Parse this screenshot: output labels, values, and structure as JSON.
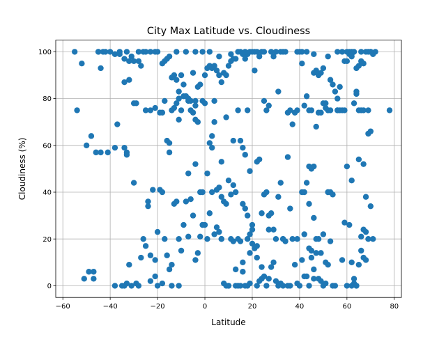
{
  "chart_data": {
    "type": "scatter",
    "title": "City Max Latitude vs. Cloudiness",
    "xlabel": "Latitude",
    "ylabel": "Cloudiness (%)",
    "xlim": [
      -63,
      83
    ],
    "ylim": [
      -5,
      105
    ],
    "xticks": [
      -60,
      -40,
      -20,
      0,
      20,
      40,
      60,
      80
    ],
    "yticks": [
      0,
      20,
      40,
      60,
      80,
      100
    ],
    "xtick_labels": [
      "−60",
      "−40",
      "−20",
      "0",
      "20",
      "40",
      "60",
      "80"
    ],
    "ytick_labels": [
      "0",
      "20",
      "40",
      "60",
      "80",
      "100"
    ],
    "grid": true,
    "marker_color": "#1f77b4",
    "points": [
      [
        -55,
        100
      ],
      [
        -52,
        95
      ],
      [
        -50,
        60
      ],
      [
        -48,
        64
      ],
      [
        -46,
        57
      ],
      [
        -44,
        57
      ],
      [
        -45,
        100
      ],
      [
        -43,
        100
      ],
      [
        -42,
        100
      ],
      [
        -44,
        93
      ],
      [
        -40,
        100
      ],
      [
        -38,
        99
      ],
      [
        -36,
        99
      ],
      [
        -34,
        97
      ],
      [
        -33,
        100
      ],
      [
        -32,
        96
      ],
      [
        -30,
        96
      ],
      [
        -28,
        96
      ],
      [
        -26,
        100
      ],
      [
        -25,
        100
      ],
      [
        -23,
        100
      ],
      [
        -21,
        100
      ],
      [
        -54,
        75
      ],
      [
        -41,
        57
      ],
      [
        -38,
        59
      ],
      [
        -37,
        69
      ],
      [
        -34,
        59
      ],
      [
        -33,
        56
      ],
      [
        -33,
        57
      ],
      [
        -31,
        98
      ],
      [
        -34,
        87
      ],
      [
        -32,
        88
      ],
      [
        -30,
        78
      ],
      [
        -28,
        100
      ],
      [
        -27,
        94
      ],
      [
        -25,
        75
      ],
      [
        -23,
        75
      ],
      [
        -21,
        76
      ],
      [
        -19,
        74
      ],
      [
        -18,
        95
      ],
      [
        -17,
        96
      ],
      [
        -16,
        97
      ],
      [
        -15,
        98
      ],
      [
        -14,
        89
      ],
      [
        -13,
        90
      ],
      [
        -12,
        88
      ],
      [
        -11,
        83
      ],
      [
        -10,
        90
      ],
      [
        -9,
        81
      ],
      [
        -8,
        81
      ],
      [
        -7,
        80
      ],
      [
        -6,
        79
      ],
      [
        -5,
        91
      ],
      [
        -4,
        79
      ],
      [
        -3,
        85
      ],
      [
        -2,
        86
      ],
      [
        -1,
        79
      ],
      [
        0,
        90
      ],
      [
        1,
        93
      ],
      [
        2,
        94
      ],
      [
        3,
        93
      ],
      [
        4,
        94
      ],
      [
        5,
        92
      ],
      [
        6,
        90
      ],
      [
        7,
        87
      ],
      [
        8,
        91
      ],
      [
        9,
        90
      ],
      [
        10,
        94
      ],
      [
        11,
        96
      ],
      [
        12,
        97
      ],
      [
        13,
        97
      ],
      [
        14,
        100
      ],
      [
        15,
        100
      ],
      [
        16,
        99
      ],
      [
        17,
        97
      ],
      [
        18,
        99
      ],
      [
        19,
        100
      ],
      [
        20,
        100
      ],
      [
        -17,
        79
      ],
      [
        -16,
        62
      ],
      [
        -15,
        61
      ],
      [
        -15,
        57
      ],
      [
        -14,
        75
      ],
      [
        -13,
        76
      ],
      [
        -12,
        78
      ],
      [
        -11,
        80
      ],
      [
        -10,
        75
      ],
      [
        -9,
        86
      ],
      [
        -8,
        81
      ],
      [
        -7,
        79
      ],
      [
        -6,
        75
      ],
      [
        -5,
        74
      ],
      [
        -4,
        77
      ],
      [
        -3,
        70
      ],
      [
        -2,
        40
      ],
      [
        -1,
        40
      ],
      [
        0,
        26
      ],
      [
        1,
        48
      ],
      [
        2,
        61
      ],
      [
        3,
        59
      ],
      [
        3,
        40
      ],
      [
        5,
        41
      ],
      [
        6,
        42
      ],
      [
        7,
        38
      ],
      [
        8,
        36
      ],
      [
        9,
        35
      ],
      [
        10,
        45
      ],
      [
        11,
        39
      ],
      [
        12,
        43
      ],
      [
        13,
        40
      ],
      [
        14,
        20
      ],
      [
        15,
        19
      ],
      [
        16,
        35
      ],
      [
        17,
        33
      ],
      [
        18,
        20
      ],
      [
        19,
        22
      ],
      [
        20,
        24
      ],
      [
        -49,
        6
      ],
      [
        -47,
        6
      ],
      [
        -47,
        3
      ],
      [
        -51,
        3
      ],
      [
        -38,
        0
      ],
      [
        -35,
        0
      ],
      [
        -34,
        0
      ],
      [
        -33,
        1
      ],
      [
        -31,
        0
      ],
      [
        -29,
        1
      ],
      [
        -27,
        12
      ],
      [
        -26,
        20
      ],
      [
        -25,
        17
      ],
      [
        -24,
        36
      ],
      [
        -24,
        34
      ],
      [
        -23,
        13
      ],
      [
        -22,
        41
      ],
      [
        -21,
        4
      ],
      [
        -21,
        11
      ],
      [
        -20,
        23
      ],
      [
        -19,
        41
      ],
      [
        -18,
        40
      ],
      [
        -17,
        20
      ],
      [
        -16,
        13
      ],
      [
        -15,
        7
      ],
      [
        -14,
        9
      ],
      [
        -13,
        35
      ],
      [
        -12,
        36
      ],
      [
        -11,
        20
      ],
      [
        -10,
        15
      ],
      [
        -9,
        26
      ],
      [
        -8,
        36
      ],
      [
        -7,
        21
      ],
      [
        -6,
        37
      ],
      [
        -5,
        30
      ],
      [
        -4,
        11
      ],
      [
        -3,
        14
      ],
      [
        -2,
        21
      ],
      [
        -1,
        26
      ],
      [
        1,
        20
      ],
      [
        2,
        31
      ],
      [
        3,
        64
      ],
      [
        4,
        79
      ],
      [
        5,
        25
      ],
      [
        6,
        23
      ],
      [
        7,
        20
      ],
      [
        8,
        1
      ],
      [
        9,
        0
      ],
      [
        10,
        0
      ],
      [
        11,
        20
      ],
      [
        12,
        19
      ],
      [
        13,
        0
      ],
      [
        14,
        0
      ],
      [
        15,
        0
      ],
      [
        16,
        6
      ],
      [
        17,
        0
      ],
      [
        18,
        0
      ],
      [
        19,
        14
      ],
      [
        20,
        18
      ],
      [
        21,
        16
      ],
      [
        22,
        12
      ],
      [
        22,
        17
      ],
      [
        23,
        2
      ],
      [
        24,
        3
      ],
      [
        25,
        4
      ],
      [
        26,
        0
      ],
      [
        27,
        3
      ],
      [
        28,
        8
      ],
      [
        29,
        10
      ],
      [
        30,
        2
      ],
      [
        31,
        0
      ],
      [
        32,
        1
      ],
      [
        33,
        0
      ],
      [
        21,
        92
      ],
      [
        22,
        100
      ],
      [
        23,
        98
      ],
      [
        24,
        100
      ],
      [
        25,
        79
      ],
      [
        26,
        75
      ],
      [
        27,
        77
      ],
      [
        28,
        100
      ],
      [
        29,
        98
      ],
      [
        30,
        100
      ],
      [
        31,
        83
      ],
      [
        32,
        100
      ],
      [
        33,
        100
      ],
      [
        34,
        100
      ],
      [
        35,
        74
      ],
      [
        36,
        75
      ],
      [
        37,
        69
      ],
      [
        38,
        74
      ],
      [
        39,
        75
      ],
      [
        22,
        53
      ],
      [
        23,
        54
      ],
      [
        24,
        31
      ],
      [
        25,
        39
      ],
      [
        26,
        40
      ],
      [
        27,
        30
      ],
      [
        28,
        31
      ],
      [
        29,
        24
      ],
      [
        30,
        20
      ],
      [
        31,
        38
      ],
      [
        32,
        44
      ],
      [
        33,
        20
      ],
      [
        34,
        19
      ],
      [
        35,
        55
      ],
      [
        36,
        33
      ],
      [
        37,
        20
      ],
      [
        38,
        9
      ],
      [
        39,
        20
      ],
      [
        40,
        100
      ],
      [
        41,
        100
      ],
      [
        41,
        95
      ],
      [
        42,
        77
      ],
      [
        43,
        81
      ],
      [
        44,
        75
      ],
      [
        45,
        75
      ],
      [
        46,
        91
      ],
      [
        47,
        92
      ],
      [
        48,
        90
      ],
      [
        49,
        91
      ],
      [
        50,
        93
      ],
      [
        51,
        78
      ],
      [
        52,
        75
      ],
      [
        53,
        88
      ],
      [
        54,
        86
      ],
      [
        55,
        83
      ],
      [
        56,
        80
      ],
      [
        57,
        85
      ],
      [
        58,
        75
      ],
      [
        59,
        75
      ],
      [
        60,
        100
      ],
      [
        61,
        100
      ],
      [
        62,
        100
      ],
      [
        63,
        100
      ],
      [
        64,
        93
      ],
      [
        65,
        94
      ],
      [
        66,
        96
      ],
      [
        67,
        95
      ],
      [
        68,
        100
      ],
      [
        69,
        100
      ],
      [
        70,
        100
      ],
      [
        71,
        99
      ],
      [
        72,
        100
      ],
      [
        78,
        75
      ],
      [
        41,
        40
      ],
      [
        42,
        40
      ],
      [
        43,
        44
      ],
      [
        44,
        51
      ],
      [
        45,
        50
      ],
      [
        46,
        51
      ],
      [
        47,
        68
      ],
      [
        48,
        20
      ],
      [
        49,
        14
      ],
      [
        50,
        22
      ],
      [
        51,
        10
      ],
      [
        52,
        40
      ],
      [
        53,
        40
      ],
      [
        54,
        39
      ],
      [
        55,
        0
      ],
      [
        56,
        75
      ],
      [
        57,
        75
      ],
      [
        58,
        11
      ],
      [
        59,
        27
      ],
      [
        60,
        51
      ],
      [
        61,
        26
      ],
      [
        62,
        10
      ],
      [
        63,
        3
      ],
      [
        64,
        0
      ],
      [
        65,
        54
      ],
      [
        66,
        21
      ],
      [
        67,
        24
      ],
      [
        68,
        23
      ],
      [
        69,
        20
      ],
      [
        70,
        34
      ],
      [
        71,
        20
      ],
      [
        41,
        11
      ],
      [
        42,
        22
      ],
      [
        43,
        4
      ],
      [
        44,
        0
      ],
      [
        45,
        15
      ],
      [
        46,
        7
      ],
      [
        47,
        14
      ],
      [
        48,
        3
      ],
      [
        49,
        2
      ],
      [
        50,
        0
      ],
      [
        51,
        1
      ],
      [
        52,
        9
      ],
      [
        53,
        19
      ],
      [
        54,
        0
      ],
      [
        60,
        0
      ],
      [
        62,
        0
      ],
      [
        63,
        1
      ],
      [
        64,
        0
      ],
      [
        65,
        9
      ],
      [
        66,
        15
      ],
      [
        67,
        12
      ],
      [
        68,
        11
      ],
      [
        69,
        65
      ],
      [
        70,
        66
      ],
      [
        15,
        62
      ],
      [
        16,
        59
      ],
      [
        17,
        56
      ],
      [
        18,
        30
      ],
      [
        19,
        49
      ],
      [
        20,
        26
      ],
      [
        44,
        35
      ],
      [
        45,
        12
      ],
      [
        46,
        29
      ],
      [
        47,
        20
      ],
      [
        48,
        74
      ],
      [
        49,
        74
      ],
      [
        50,
        78
      ],
      [
        51,
        76
      ],
      [
        52,
        75
      ],
      [
        53,
        75
      ],
      [
        58,
        100
      ],
      [
        59,
        96
      ],
      [
        60,
        96
      ],
      [
        61,
        99
      ],
      [
        62,
        98
      ],
      [
        63,
        78
      ],
      [
        64,
        82
      ],
      [
        65,
        75
      ],
      [
        66,
        75
      ],
      [
        67,
        52
      ],
      [
        68,
        38
      ],
      [
        69,
        75
      ],
      [
        -45,
        100
      ],
      [
        -36,
        100
      ],
      [
        -20,
        100
      ],
      [
        -12,
        100
      ],
      [
        -8,
        100
      ],
      [
        -4,
        100
      ],
      [
        -1,
        100
      ],
      [
        2,
        100
      ],
      [
        6,
        98
      ],
      [
        11,
        99
      ],
      [
        17,
        100
      ],
      [
        21,
        100
      ],
      [
        25,
        100
      ],
      [
        39,
        100
      ],
      [
        43,
        100
      ],
      [
        46,
        99
      ],
      [
        52,
        98
      ],
      [
        56,
        100
      ],
      [
        62,
        99
      ],
      [
        66,
        100
      ],
      [
        70,
        100
      ],
      [
        -29,
        78
      ],
      [
        -18,
        74
      ],
      [
        -11,
        71
      ],
      [
        -4,
        71
      ],
      [
        0,
        78
      ],
      [
        4,
        70
      ],
      [
        7,
        53
      ],
      [
        9,
        72
      ],
      [
        12,
        62
      ],
      [
        14,
        75
      ],
      [
        18,
        75
      ],
      [
        33,
        20
      ],
      [
        36,
        0
      ],
      [
        39,
        1
      ],
      [
        42,
        4
      ],
      [
        46,
        3
      ],
      [
        52,
        40
      ],
      [
        56,
        75
      ],
      [
        62,
        45
      ],
      [
        64,
        83
      ],
      [
        67,
        75
      ],
      [
        -32,
        9
      ],
      [
        -30,
        44
      ],
      [
        -28,
        0
      ],
      [
        -23,
        2
      ],
      [
        -20,
        0
      ],
      [
        -18,
        1
      ],
      [
        -14,
        0
      ],
      [
        -11,
        0
      ],
      [
        -7,
        48
      ],
      [
        -4,
        52
      ],
      [
        -1,
        26
      ],
      [
        4,
        22
      ],
      [
        7,
        20
      ],
      [
        10,
        0
      ],
      [
        13,
        7
      ],
      [
        16,
        10
      ],
      [
        19,
        1
      ],
      [
        22,
        0
      ],
      [
        24,
        8
      ],
      [
        27,
        24
      ],
      [
        35,
        0
      ],
      [
        40,
        0
      ],
      [
        44,
        16
      ]
    ]
  }
}
